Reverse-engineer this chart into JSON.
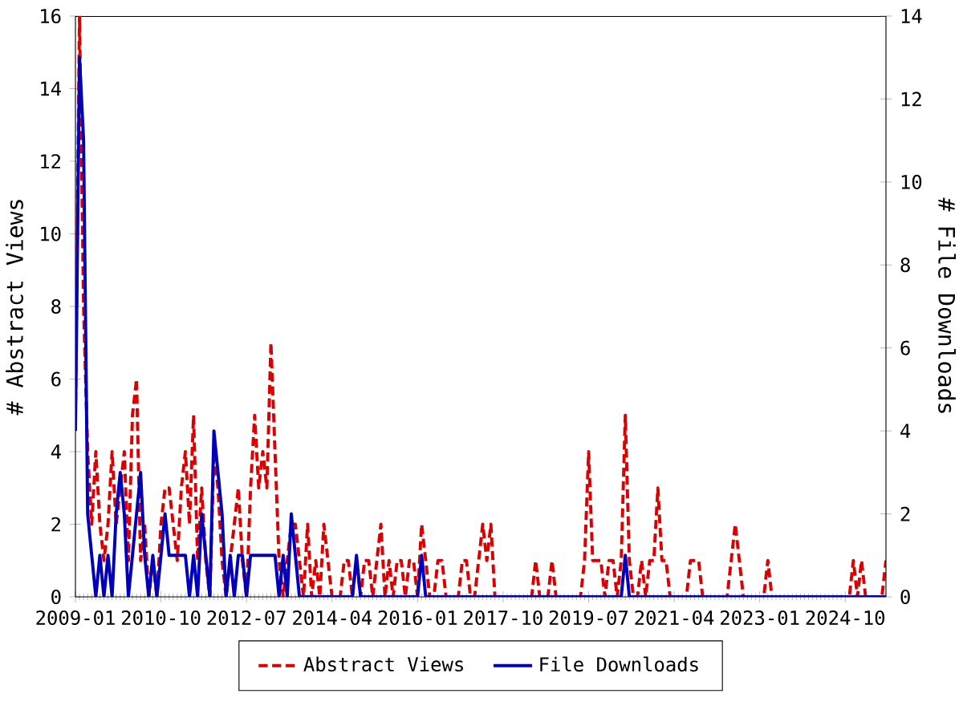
{
  "chart_data": {
    "type": "line",
    "xlabel": null,
    "ylabel": "# Abstract Views",
    "y2label": "# File Downloads",
    "x": [
      "2009-01",
      "2009-02",
      "2009-03",
      "2009-04",
      "2009-05",
      "2009-06",
      "2009-07",
      "2009-08",
      "2009-09",
      "2009-10",
      "2009-11",
      "2009-12",
      "2010-01",
      "2010-02",
      "2010-03",
      "2010-04",
      "2010-05",
      "2010-06",
      "2010-07",
      "2010-08",
      "2010-09",
      "2010-10",
      "2010-11",
      "2010-12",
      "2011-01",
      "2011-02",
      "2011-03",
      "2011-04",
      "2011-05",
      "2011-06",
      "2011-07",
      "2011-08",
      "2011-09",
      "2011-10",
      "2011-11",
      "2011-12",
      "2012-01",
      "2012-02",
      "2012-03",
      "2012-04",
      "2012-05",
      "2012-06",
      "2012-07",
      "2012-08",
      "2012-09",
      "2012-10",
      "2012-11",
      "2012-12",
      "2013-01",
      "2013-02",
      "2013-03",
      "2013-04",
      "2013-05",
      "2013-06",
      "2013-07",
      "2013-08",
      "2013-09",
      "2013-10",
      "2013-11",
      "2013-12",
      "2014-01",
      "2014-02",
      "2014-03",
      "2014-04",
      "2014-05",
      "2014-06",
      "2014-07",
      "2014-08",
      "2014-09",
      "2014-10",
      "2014-11",
      "2014-12",
      "2015-01",
      "2015-02",
      "2015-03",
      "2015-04",
      "2015-05",
      "2015-06",
      "2015-07",
      "2015-08",
      "2015-09",
      "2015-10",
      "2015-11",
      "2015-12",
      "2016-01",
      "2016-02",
      "2016-03",
      "2016-04",
      "2016-05",
      "2016-06",
      "2016-07",
      "2016-08",
      "2016-09",
      "2016-10",
      "2016-11",
      "2016-12",
      "2017-01",
      "2017-02",
      "2017-03",
      "2017-04",
      "2017-05",
      "2017-06",
      "2017-07",
      "2017-08",
      "2017-09",
      "2017-10",
      "2017-11",
      "2017-12",
      "2018-01",
      "2018-02",
      "2018-03",
      "2018-04",
      "2018-05",
      "2018-06",
      "2018-07",
      "2018-08",
      "2018-09",
      "2018-10",
      "2018-11",
      "2018-12",
      "2019-01",
      "2019-02",
      "2019-03",
      "2019-04",
      "2019-05",
      "2019-06",
      "2019-07",
      "2019-08",
      "2019-09",
      "2019-10",
      "2019-11",
      "2019-12",
      "2020-01",
      "2020-02",
      "2020-03",
      "2020-04",
      "2020-05",
      "2020-06",
      "2020-07",
      "2020-08",
      "2020-09",
      "2020-10",
      "2020-11",
      "2020-12",
      "2021-01",
      "2021-02",
      "2021-03",
      "2021-04",
      "2021-05",
      "2021-06",
      "2021-07",
      "2021-08",
      "2021-09",
      "2021-10",
      "2021-11",
      "2021-12",
      "2022-01",
      "2022-02",
      "2022-03",
      "2022-04",
      "2022-05",
      "2022-06",
      "2022-07",
      "2022-08",
      "2022-09",
      "2022-10",
      "2022-11",
      "2022-12",
      "2023-01",
      "2023-02",
      "2023-03",
      "2023-04",
      "2023-05",
      "2023-06",
      "2023-07",
      "2023-08",
      "2023-09",
      "2023-10",
      "2023-11",
      "2023-12",
      "2024-01",
      "2024-02",
      "2024-03",
      "2024-04",
      "2024-05",
      "2024-06",
      "2024-07",
      "2024-08",
      "2024-09",
      "2024-10",
      "2024-11",
      "2024-12",
      "2025-01",
      "2025-02",
      "2025-03",
      "2025-04",
      "2025-05",
      "2025-06",
      "2025-07",
      "2025-08"
    ],
    "series": [
      {
        "name": "Abstract Views",
        "color": "#dd0000",
        "line_style": "dashed",
        "values": [
          5,
          16,
          8,
          4,
          2,
          4,
          2,
          1,
          2,
          4,
          2,
          3,
          4,
          1,
          5,
          6,
          1,
          2,
          0,
          1,
          0,
          2,
          3,
          3,
          2,
          1,
          3,
          4,
          2,
          5,
          1,
          3,
          1,
          0,
          4,
          3,
          1,
          0,
          1,
          2,
          3,
          1,
          0,
          3,
          5,
          3,
          4,
          3,
          7,
          4,
          1,
          0,
          1,
          2,
          2,
          1,
          0,
          2,
          0,
          1,
          0,
          2,
          1,
          0,
          0,
          0,
          1,
          1,
          0,
          1,
          0,
          1,
          1,
          0,
          1,
          2,
          0,
          1,
          0,
          1,
          1,
          0,
          1,
          1,
          0,
          2,
          1,
          0,
          0,
          1,
          1,
          0,
          0,
          0,
          0,
          1,
          1,
          0,
          0,
          1,
          2,
          1,
          2,
          0,
          0,
          0,
          0,
          0,
          0,
          0,
          0,
          0,
          0,
          1,
          0,
          0,
          0,
          1,
          0,
          0,
          0,
          0,
          0,
          0,
          0,
          1,
          4,
          1,
          1,
          1,
          0,
          1,
          1,
          0,
          1,
          5,
          1,
          0,
          0,
          1,
          0,
          1,
          1,
          3,
          1,
          1,
          0,
          0,
          0,
          0,
          0,
          1,
          1,
          1,
          0,
          0,
          0,
          0,
          0,
          0,
          0,
          1,
          2,
          1,
          0,
          0,
          0,
          0,
          0,
          0,
          1,
          0,
          0,
          0,
          0,
          0,
          0,
          0,
          0,
          0,
          0,
          0,
          0,
          0,
          0,
          0,
          0,
          0,
          0,
          0,
          0,
          1,
          0,
          1,
          0,
          0,
          0,
          0,
          0,
          1
        ]
      },
      {
        "name": "File Downloads",
        "color": "#0000bb",
        "line_style": "solid",
        "axis": "y2",
        "values": [
          4,
          13,
          11,
          2,
          1,
          0,
          1,
          0,
          1,
          0,
          2,
          3,
          2,
          0,
          1,
          2,
          3,
          1,
          0,
          1,
          0,
          1,
          2,
          1,
          1,
          1,
          1,
          1,
          0,
          1,
          0,
          2,
          1,
          0,
          4,
          3,
          2,
          0,
          1,
          0,
          1,
          1,
          0,
          1,
          1,
          1,
          1,
          1,
          1,
          1,
          0,
          1,
          0,
          2,
          1,
          0,
          0,
          0,
          0,
          0,
          0,
          0,
          0,
          0,
          0,
          0,
          0,
          0,
          0,
          1,
          0,
          0,
          0,
          0,
          0,
          0,
          0,
          0,
          0,
          0,
          0,
          0,
          0,
          0,
          0,
          1,
          0,
          0,
          0,
          0,
          0,
          0,
          0,
          0,
          0,
          0,
          0,
          0,
          0,
          0,
          0,
          0,
          0,
          0,
          0,
          0,
          0,
          0,
          0,
          0,
          0,
          0,
          0,
          0,
          0,
          0,
          0,
          0,
          0,
          0,
          0,
          0,
          0,
          0,
          0,
          0,
          0,
          0,
          0,
          0,
          0,
          0,
          0,
          0,
          0,
          1,
          0,
          0,
          0,
          0,
          0,
          0,
          0,
          0,
          0,
          0,
          0,
          0,
          0,
          0,
          0,
          0,
          0,
          0,
          0,
          0,
          0,
          0,
          0,
          0,
          0,
          0,
          0,
          0,
          0,
          0,
          0,
          0,
          0,
          0,
          0,
          0,
          0,
          0,
          0,
          0,
          0,
          0,
          0,
          0,
          0,
          0,
          0,
          0,
          0,
          0,
          0,
          0,
          0,
          0,
          0,
          0,
          0,
          0,
          0,
          0,
          0,
          0,
          0,
          0
        ]
      }
    ],
    "xlim": [
      "2009-01",
      "2025-08"
    ],
    "xticks": [
      "2009-01",
      "2010-10",
      "2012-07",
      "2014-04",
      "2016-01",
      "2017-10",
      "2019-07",
      "2021-04",
      "2023-01",
      "2024-10"
    ],
    "ylim": [
      0,
      16
    ],
    "yticks": [
      0,
      2,
      4,
      6,
      8,
      10,
      12,
      14,
      16
    ],
    "y2lim": [
      0,
      14
    ],
    "y2ticks": [
      0,
      2,
      4,
      6,
      8,
      10,
      12,
      14
    ],
    "legend": "bottom"
  }
}
